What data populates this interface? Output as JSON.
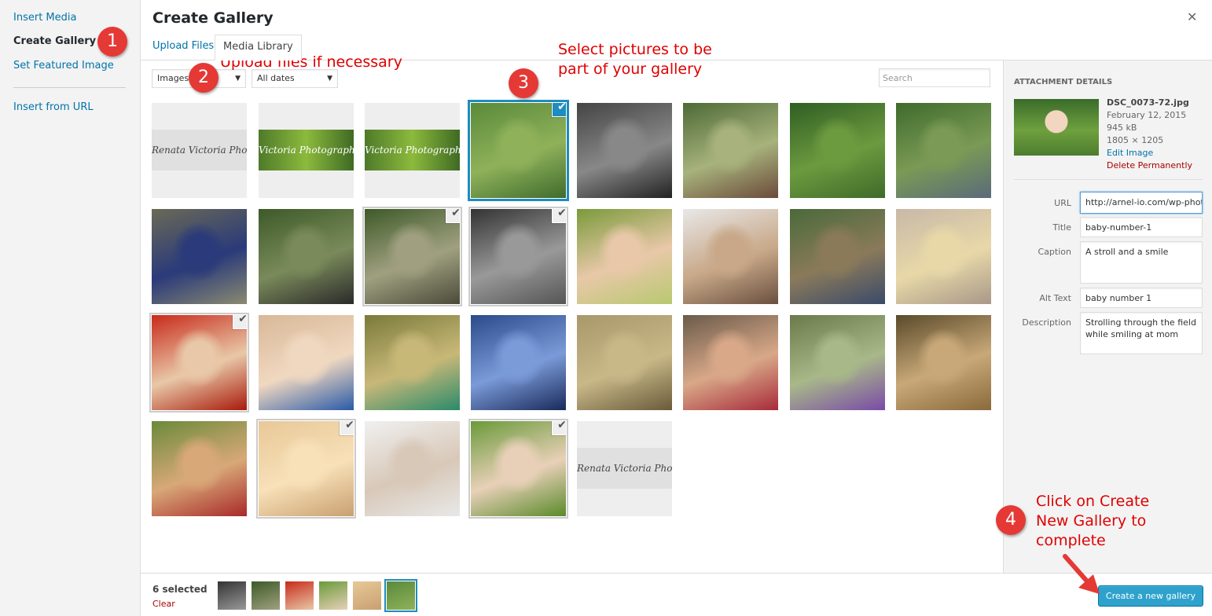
{
  "menu": {
    "items": [
      {
        "label": "Insert Media",
        "active": false
      },
      {
        "label": "Create Gallery",
        "active": true
      },
      {
        "label": "Set Featured Image",
        "active": false
      },
      {
        "label": "Insert from URL",
        "active": false
      }
    ]
  },
  "frame": {
    "title": "Create Gallery",
    "close_icon": "close-icon",
    "tabs": [
      "Upload Files",
      "Media Library"
    ],
    "active_tab": "Media Library"
  },
  "toolbar": {
    "type_filter": "Images",
    "date_filter": "All dates",
    "search_placeholder": "Search"
  },
  "grid": {
    "items": [
      {
        "row": 0,
        "col": 0,
        "kind": "banner",
        "text": "Renata Victoria Photography",
        "selected": false
      },
      {
        "row": 0,
        "col": 1,
        "kind": "banner-green",
        "text": "Victoria Photography",
        "selected": false
      },
      {
        "row": 0,
        "col": 2,
        "kind": "banner-green",
        "text": "Victoria Photography",
        "selected": false
      },
      {
        "row": 0,
        "col": 3,
        "kind": "photo",
        "colors": [
          "#5a8a3a",
          "#8fb15a",
          "#3f6b2c"
        ],
        "selected": true,
        "focused": true
      },
      {
        "row": 0,
        "col": 4,
        "kind": "photo",
        "colors": [
          "#444",
          "#888",
          "#222"
        ],
        "selected": false
      },
      {
        "row": 0,
        "col": 5,
        "kind": "photo",
        "colors": [
          "#4d6a36",
          "#a7b27c",
          "#6b4a3a"
        ],
        "selected": false
      },
      {
        "row": 0,
        "col": 6,
        "kind": "photo",
        "colors": [
          "#2f5e23",
          "#6c9a3f",
          "#3e6b29"
        ],
        "selected": false
      },
      {
        "row": 0,
        "col": 7,
        "kind": "photo",
        "colors": [
          "#3f6b2c",
          "#7a9a55",
          "#5a6a7a"
        ],
        "selected": false
      },
      {
        "row": 1,
        "col": 0,
        "kind": "photo",
        "colors": [
          "#6b6a55",
          "#2a3a7a",
          "#8a8a70"
        ],
        "selected": false
      },
      {
        "row": 1,
        "col": 1,
        "kind": "photo",
        "colors": [
          "#3d5a28",
          "#7a8a5a",
          "#2a2a2a"
        ],
        "selected": false
      },
      {
        "row": 1,
        "col": 2,
        "kind": "photo",
        "colors": [
          "#3d5a28",
          "#a0a080",
          "#4a4a3a"
        ],
        "selected": true,
        "focused": false
      },
      {
        "row": 1,
        "col": 3,
        "kind": "photo",
        "colors": [
          "#333",
          "#999",
          "#555"
        ],
        "selected": true,
        "focused": false
      },
      {
        "row": 1,
        "col": 4,
        "kind": "photo",
        "colors": [
          "#7a9a3a",
          "#e8c8a8",
          "#b8c870"
        ],
        "selected": false
      },
      {
        "row": 1,
        "col": 5,
        "kind": "photo",
        "colors": [
          "#e8e8e8",
          "#c8a888",
          "#6a5040"
        ],
        "selected": false
      },
      {
        "row": 1,
        "col": 6,
        "kind": "photo",
        "colors": [
          "#4a6a3a",
          "#8a7a5a",
          "#3a4a6a"
        ],
        "selected": false
      },
      {
        "row": 1,
        "col": 7,
        "kind": "photo",
        "colors": [
          "#c8b8a8",
          "#e8d8a8",
          "#a89888"
        ],
        "selected": false
      },
      {
        "row": 2,
        "col": 0,
        "kind": "photo",
        "colors": [
          "#c82a1a",
          "#e8c8a8",
          "#a81a0a"
        ],
        "selected": true,
        "focused": false
      },
      {
        "row": 2,
        "col": 1,
        "kind": "photo",
        "colors": [
          "#d8b898",
          "#f0d8c0",
          "#2a5aa8"
        ],
        "selected": false
      },
      {
        "row": 2,
        "col": 2,
        "kind": "photo",
        "colors": [
          "#7a7a3a",
          "#c8b878",
          "#2a8a6a"
        ],
        "selected": false
      },
      {
        "row": 2,
        "col": 3,
        "kind": "photo",
        "colors": [
          "#2a4a8a",
          "#7a9ad8",
          "#1a2a5a"
        ],
        "selected": false
      },
      {
        "row": 2,
        "col": 4,
        "kind": "photo",
        "colors": [
          "#a8986a",
          "#c8b888",
          "#6a5a3a"
        ],
        "selected": false
      },
      {
        "row": 2,
        "col": 5,
        "kind": "photo",
        "colors": [
          "#6a5a4a",
          "#d8a888",
          "#a82a3a"
        ],
        "selected": false
      },
      {
        "row": 2,
        "col": 6,
        "kind": "photo",
        "colors": [
          "#6a7a4a",
          "#a8b888",
          "#7a4aa8"
        ],
        "selected": false
      },
      {
        "row": 2,
        "col": 7,
        "kind": "photo",
        "colors": [
          "#5a4a2a",
          "#c8a878",
          "#8a6a3a"
        ],
        "selected": false
      },
      {
        "row": 3,
        "col": 0,
        "kind": "photo",
        "colors": [
          "#6a8a3a",
          "#d8a878",
          "#a82a2a"
        ],
        "selected": false
      },
      {
        "row": 3,
        "col": 1,
        "kind": "photo",
        "colors": [
          "#e8c898",
          "#f8e0b8",
          "#c8a070"
        ],
        "selected": true,
        "focused": false
      },
      {
        "row": 3,
        "col": 2,
        "kind": "photo",
        "colors": [
          "#f0f0f0",
          "#d8c8b8",
          "#e8e8e8"
        ],
        "selected": false
      },
      {
        "row": 3,
        "col": 3,
        "kind": "photo",
        "colors": [
          "#6a9a3a",
          "#e8d0b8",
          "#5a8a2a"
        ],
        "selected": true,
        "focused": false
      },
      {
        "row": 3,
        "col": 4,
        "kind": "banner",
        "text": "Renata Victoria Photography",
        "selected": false
      }
    ]
  },
  "details": {
    "heading": "ATTACHMENT DETAILS",
    "filename": "DSC_0073-72.jpg",
    "date": "February 12, 2015",
    "size": "945 kB",
    "dimensions": "1805 × 1205",
    "edit_link": "Edit Image",
    "delete_link": "Delete Permanently",
    "fields": {
      "url_label": "URL",
      "url_value": "http://arnel-io.com/wp-photo",
      "title_label": "Title",
      "title_value": "baby-number-1",
      "caption_label": "Caption",
      "caption_value": "A stroll and a smile",
      "alt_label": "Alt Text",
      "alt_value": "baby number 1",
      "desc_label": "Description",
      "desc_value": "Strolling through the field while smiling at mom"
    }
  },
  "bottom": {
    "selected_count": "6 selected",
    "clear_label": "Clear",
    "selection": [
      {
        "colors": [
          "#333",
          "#999"
        ]
      },
      {
        "colors": [
          "#3d5a28",
          "#a0a080"
        ]
      },
      {
        "colors": [
          "#c82a1a",
          "#e8c8a8"
        ]
      },
      {
        "colors": [
          "#6a9a3a",
          "#e8d0b8"
        ]
      },
      {
        "colors": [
          "#e8c898",
          "#c8a070"
        ]
      },
      {
        "colors": [
          "#5a8a3a",
          "#8fb15a"
        ],
        "active": true
      }
    ],
    "create_button": "Create a new gallery"
  },
  "annotations": {
    "badges": [
      "1",
      "2",
      "3",
      "4"
    ],
    "note2": "Upload files if necessary",
    "note3_line1": "Select pictures to be",
    "note3_line2": "part of your gallery",
    "note4_line1": "Click on Create",
    "note4_line2": "New Gallery to",
    "note4_line3": "complete",
    "color": "#e00000"
  }
}
